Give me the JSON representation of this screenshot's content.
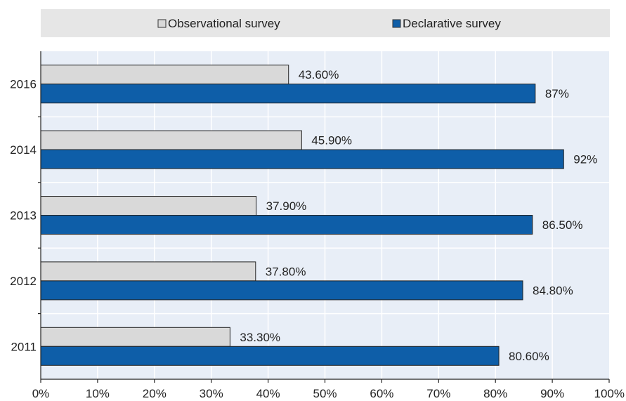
{
  "chart_data": {
    "type": "bar",
    "orientation": "horizontal",
    "categories": [
      "2016",
      "2014",
      "2013",
      "2012",
      "2011"
    ],
    "series": [
      {
        "name": "Observational survey",
        "color": "#d9d9d9",
        "values": [
          43.6,
          45.9,
          37.9,
          37.8,
          33.3
        ],
        "labels": [
          "43.60%",
          "45.90%",
          "37.90%",
          "37.80%",
          "33.30%"
        ]
      },
      {
        "name": "Declarative survey",
        "color": "#0e5ea8",
        "values": [
          87,
          92,
          86.5,
          84.8,
          80.6
        ],
        "labels": [
          "87%",
          "92%",
          "86.50%",
          "84.80%",
          "80.60%"
        ]
      }
    ],
    "xlim": [
      0,
      100
    ],
    "x_ticks": [
      "0%",
      "10%",
      "20%",
      "30%",
      "40%",
      "50%",
      "60%",
      "70%",
      "80%",
      "90%",
      "100%"
    ],
    "grid": true,
    "legend_position": "top",
    "title": "",
    "xlabel": "",
    "ylabel": ""
  },
  "colors": {
    "plot_background": "#e8eef7",
    "legend_background": "#e6e6e6",
    "gridline": "#ffffff"
  }
}
